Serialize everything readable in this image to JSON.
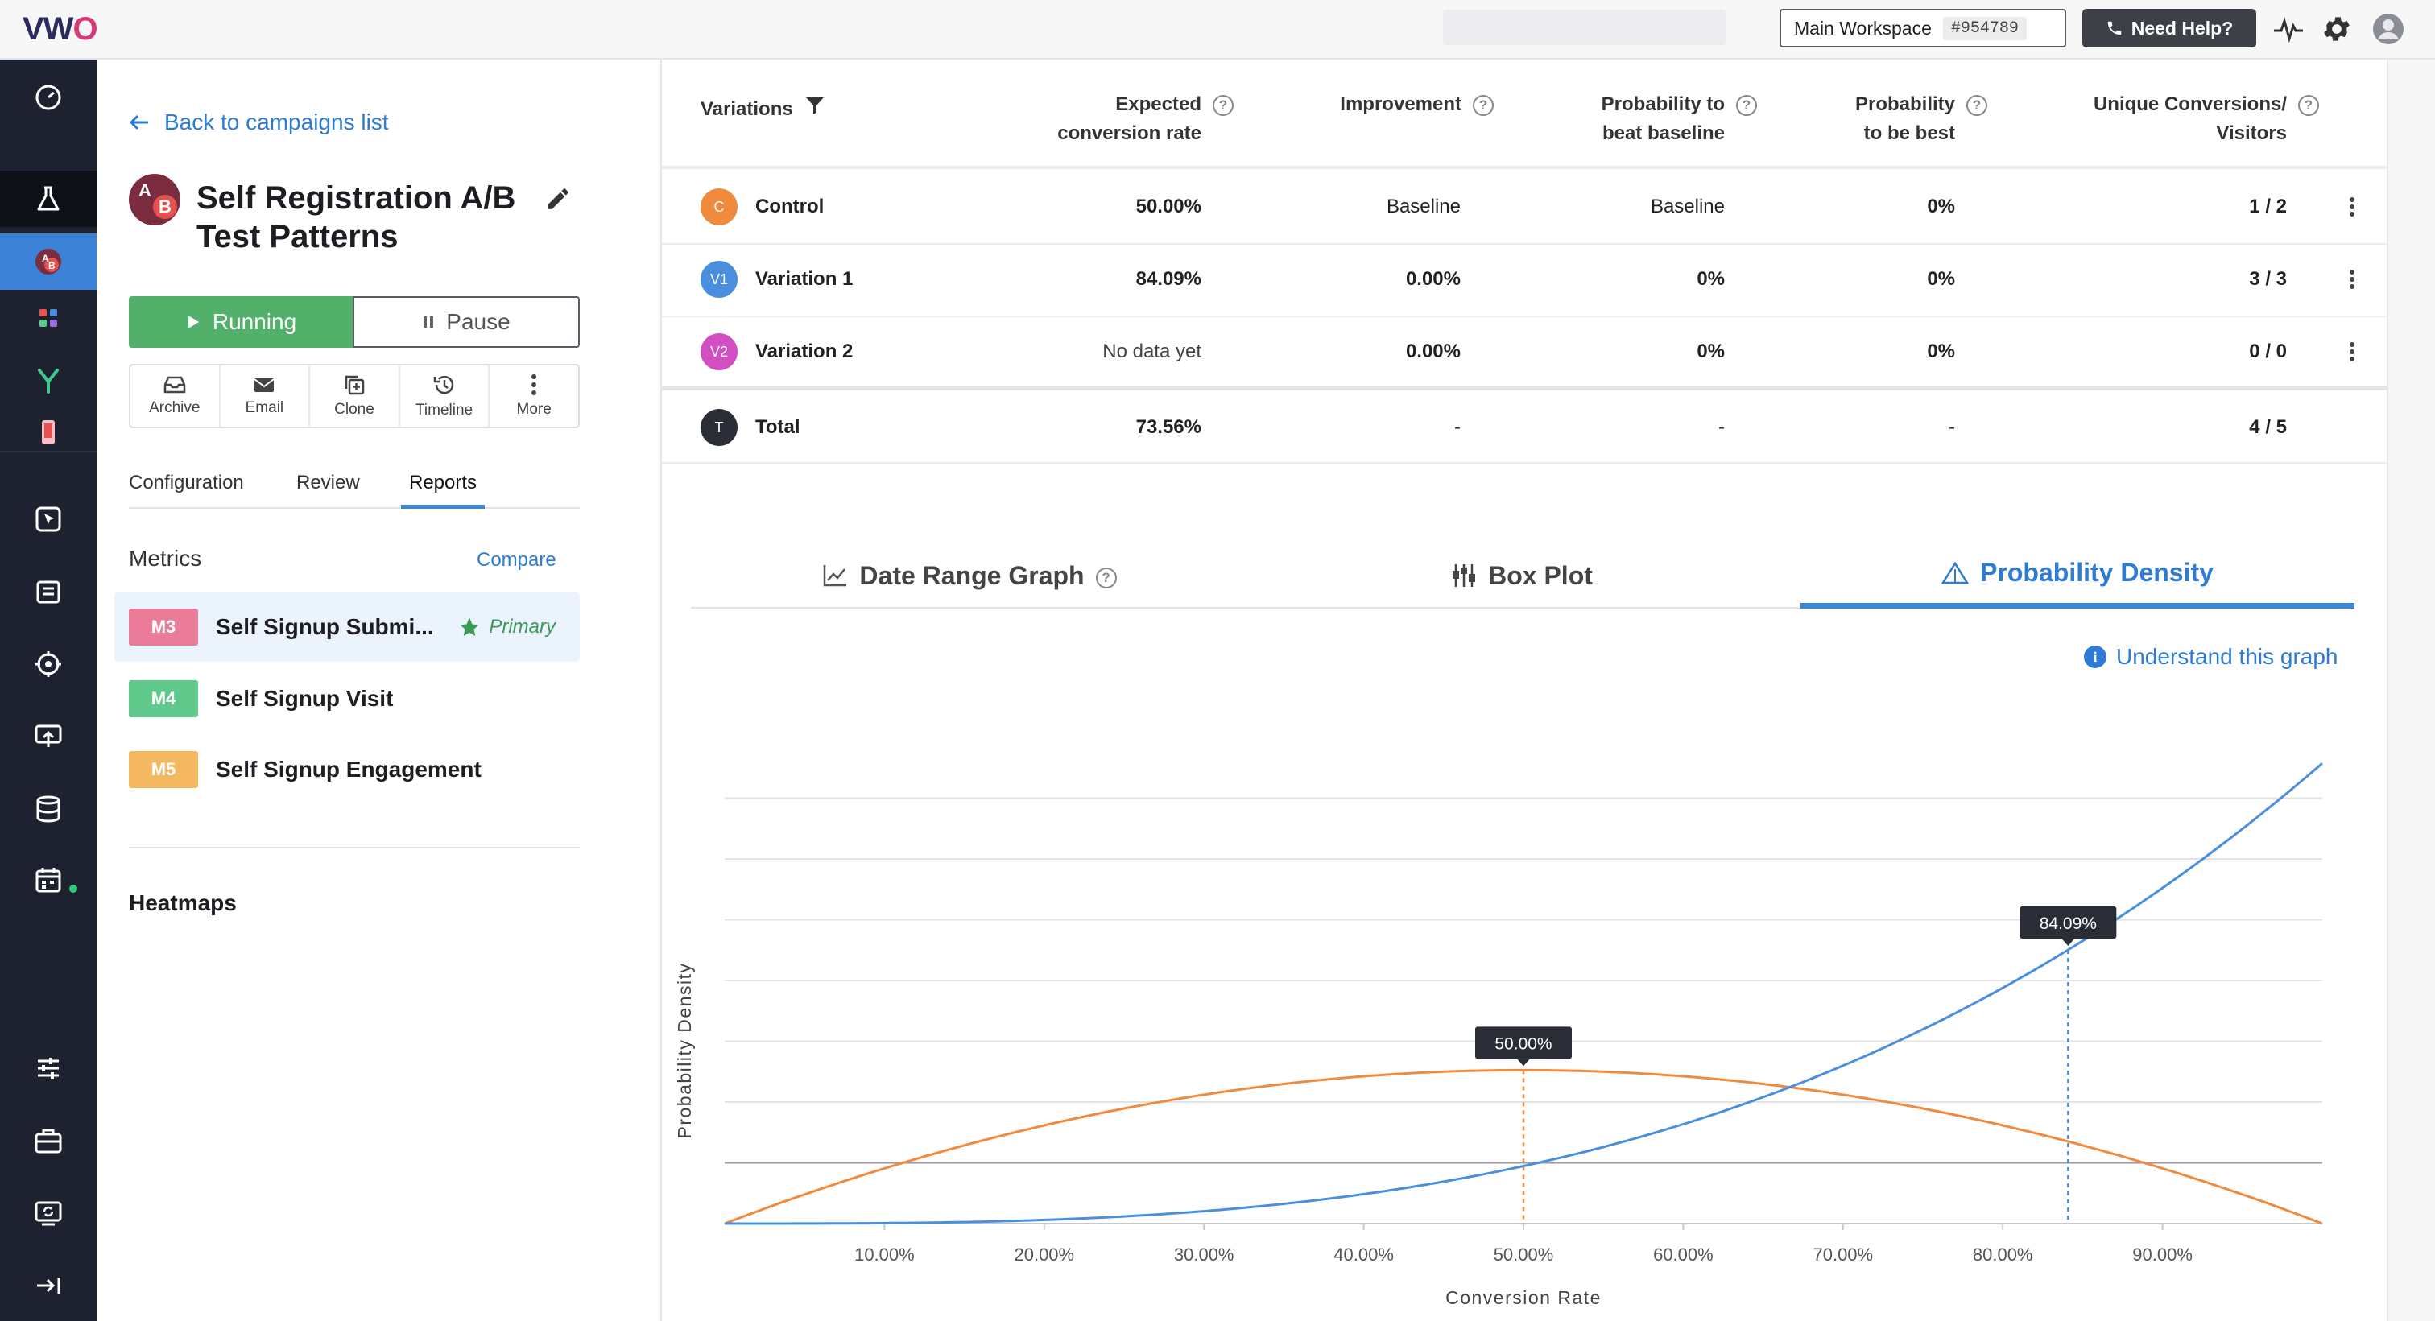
{
  "app": {
    "logo_text": "VWO",
    "workspace": {
      "name": "Main Workspace",
      "id": "#954789"
    },
    "help_label": "Need Help?",
    "top_icons": [
      "activity-icon",
      "gear-icon",
      "user-avatar-icon"
    ]
  },
  "rail": {
    "items": [
      "dashboard-icon",
      "testing-icon",
      "ab-test-icon",
      "apps-icon",
      "split-icon",
      "mobile-icon",
      "insights-icon",
      "surveys-icon",
      "target-icon",
      "deploy-icon",
      "data-icon",
      "calendar-icon",
      "settings-sliders-icon",
      "briefcase-icon",
      "sync-icon",
      "collapse-icon"
    ]
  },
  "panel": {
    "back_label": "Back to campaigns list",
    "avatar": {
      "a": "A",
      "b": "B"
    },
    "campaign_title": "Self Registration A/B Test Patterns",
    "running_label": "Running",
    "pause_label": "Pause",
    "actions": [
      {
        "label": "Archive",
        "icon": "archive-icon"
      },
      {
        "label": "Email",
        "icon": "email-icon"
      },
      {
        "label": "Clone",
        "icon": "clone-icon"
      },
      {
        "label": "Timeline",
        "icon": "history-icon"
      },
      {
        "label": "More",
        "icon": "more-icon"
      }
    ],
    "tabs": [
      "Configuration",
      "Review",
      "Reports"
    ],
    "active_tab": "Reports",
    "metrics_heading": "Metrics",
    "compare_label": "Compare",
    "metrics": [
      {
        "badge": "M3",
        "name": "Self Signup Submi...",
        "color": "#ea7b99",
        "primary": "Primary"
      },
      {
        "badge": "M4",
        "name": "Self Signup Visit",
        "color": "#5ec98a"
      },
      {
        "badge": "M5",
        "name": "Self Signup Engagement",
        "color": "#f4b860"
      }
    ],
    "heatmaps_label": "Heatmaps"
  },
  "table": {
    "headers": {
      "variations": "Variations",
      "expected_1": "Expected",
      "expected_2": "conversion rate",
      "improvement": "Improvement",
      "beat_1": "Probability to",
      "beat_2": "beat baseline",
      "best_1": "Probability",
      "best_2": "to be best",
      "conv_1": "Unique Conversions/",
      "conv_2": "Visitors"
    },
    "rows": [
      {
        "badge": "C",
        "color": "#f08a3c",
        "name": "Control",
        "expected": "50.00%",
        "improvement": "Baseline",
        "beat": "Baseline",
        "best": "0%",
        "conv": "1 / 2"
      },
      {
        "badge": "V1",
        "color": "#4a8fde",
        "name": "Variation 1",
        "expected": "84.09%",
        "improvement": "0.00%",
        "beat": "0%",
        "best": "0%",
        "conv": "3 / 3"
      },
      {
        "badge": "V2",
        "color": "#d14fc2",
        "name": "Variation 2",
        "expected": "No data yet",
        "improvement": "0.00%",
        "beat": "0%",
        "best": "0%",
        "conv": "0 / 0"
      }
    ],
    "total": {
      "badge": "T",
      "name": "Total",
      "expected": "73.56%",
      "improvement": "-",
      "beat": "-",
      "best": "-",
      "conv": "4 / 5"
    }
  },
  "graph_tabs": {
    "tabs": [
      {
        "label": "Date Range Graph",
        "icon": "line-chart-icon"
      },
      {
        "label": "Box Plot",
        "icon": "box-plot-icon"
      },
      {
        "label": "Probability Density",
        "icon": "density-icon"
      }
    ],
    "active": "Probability Density",
    "understand_label": "Understand this graph"
  },
  "chart_data": {
    "type": "line",
    "xlabel": "Conversion Rate",
    "ylabel": "Probability Density",
    "xlim": [
      0,
      1
    ],
    "x_tick_labels": [
      "10.00%",
      "20.00%",
      "30.00%",
      "40.00%",
      "50.00%",
      "60.00%",
      "70.00%",
      "80.00%",
      "90.00%"
    ],
    "x_ticks": [
      0.1,
      0.2,
      0.3,
      0.4,
      0.5,
      0.6,
      0.7,
      0.8,
      0.9
    ],
    "grid": true,
    "series": [
      {
        "color": "#f08a3c",
        "x": [
          0,
          0.1,
          0.2,
          0.3,
          0.4,
          0.5,
          0.6,
          0.7,
          0.8,
          0.9,
          1.0
        ],
        "values": [
          0,
          0.36,
          0.64,
          0.84,
          0.96,
          1.0,
          0.96,
          0.84,
          0.64,
          0.36,
          0
        ],
        "marker": {
          "x": 0.5,
          "label": "50.00%"
        }
      },
      {
        "color": "#4a8fde",
        "x": [
          0,
          0.1,
          0.2,
          0.3,
          0.4,
          0.5,
          0.6,
          0.7,
          0.8,
          0.9,
          1.0
        ],
        "values": [
          0,
          0.003,
          0.024,
          0.081,
          0.192,
          0.375,
          0.648,
          1.029,
          1.536,
          2.187,
          3.0
        ],
        "marker": {
          "x": 0.8409,
          "label": "84.09%"
        }
      }
    ]
  }
}
